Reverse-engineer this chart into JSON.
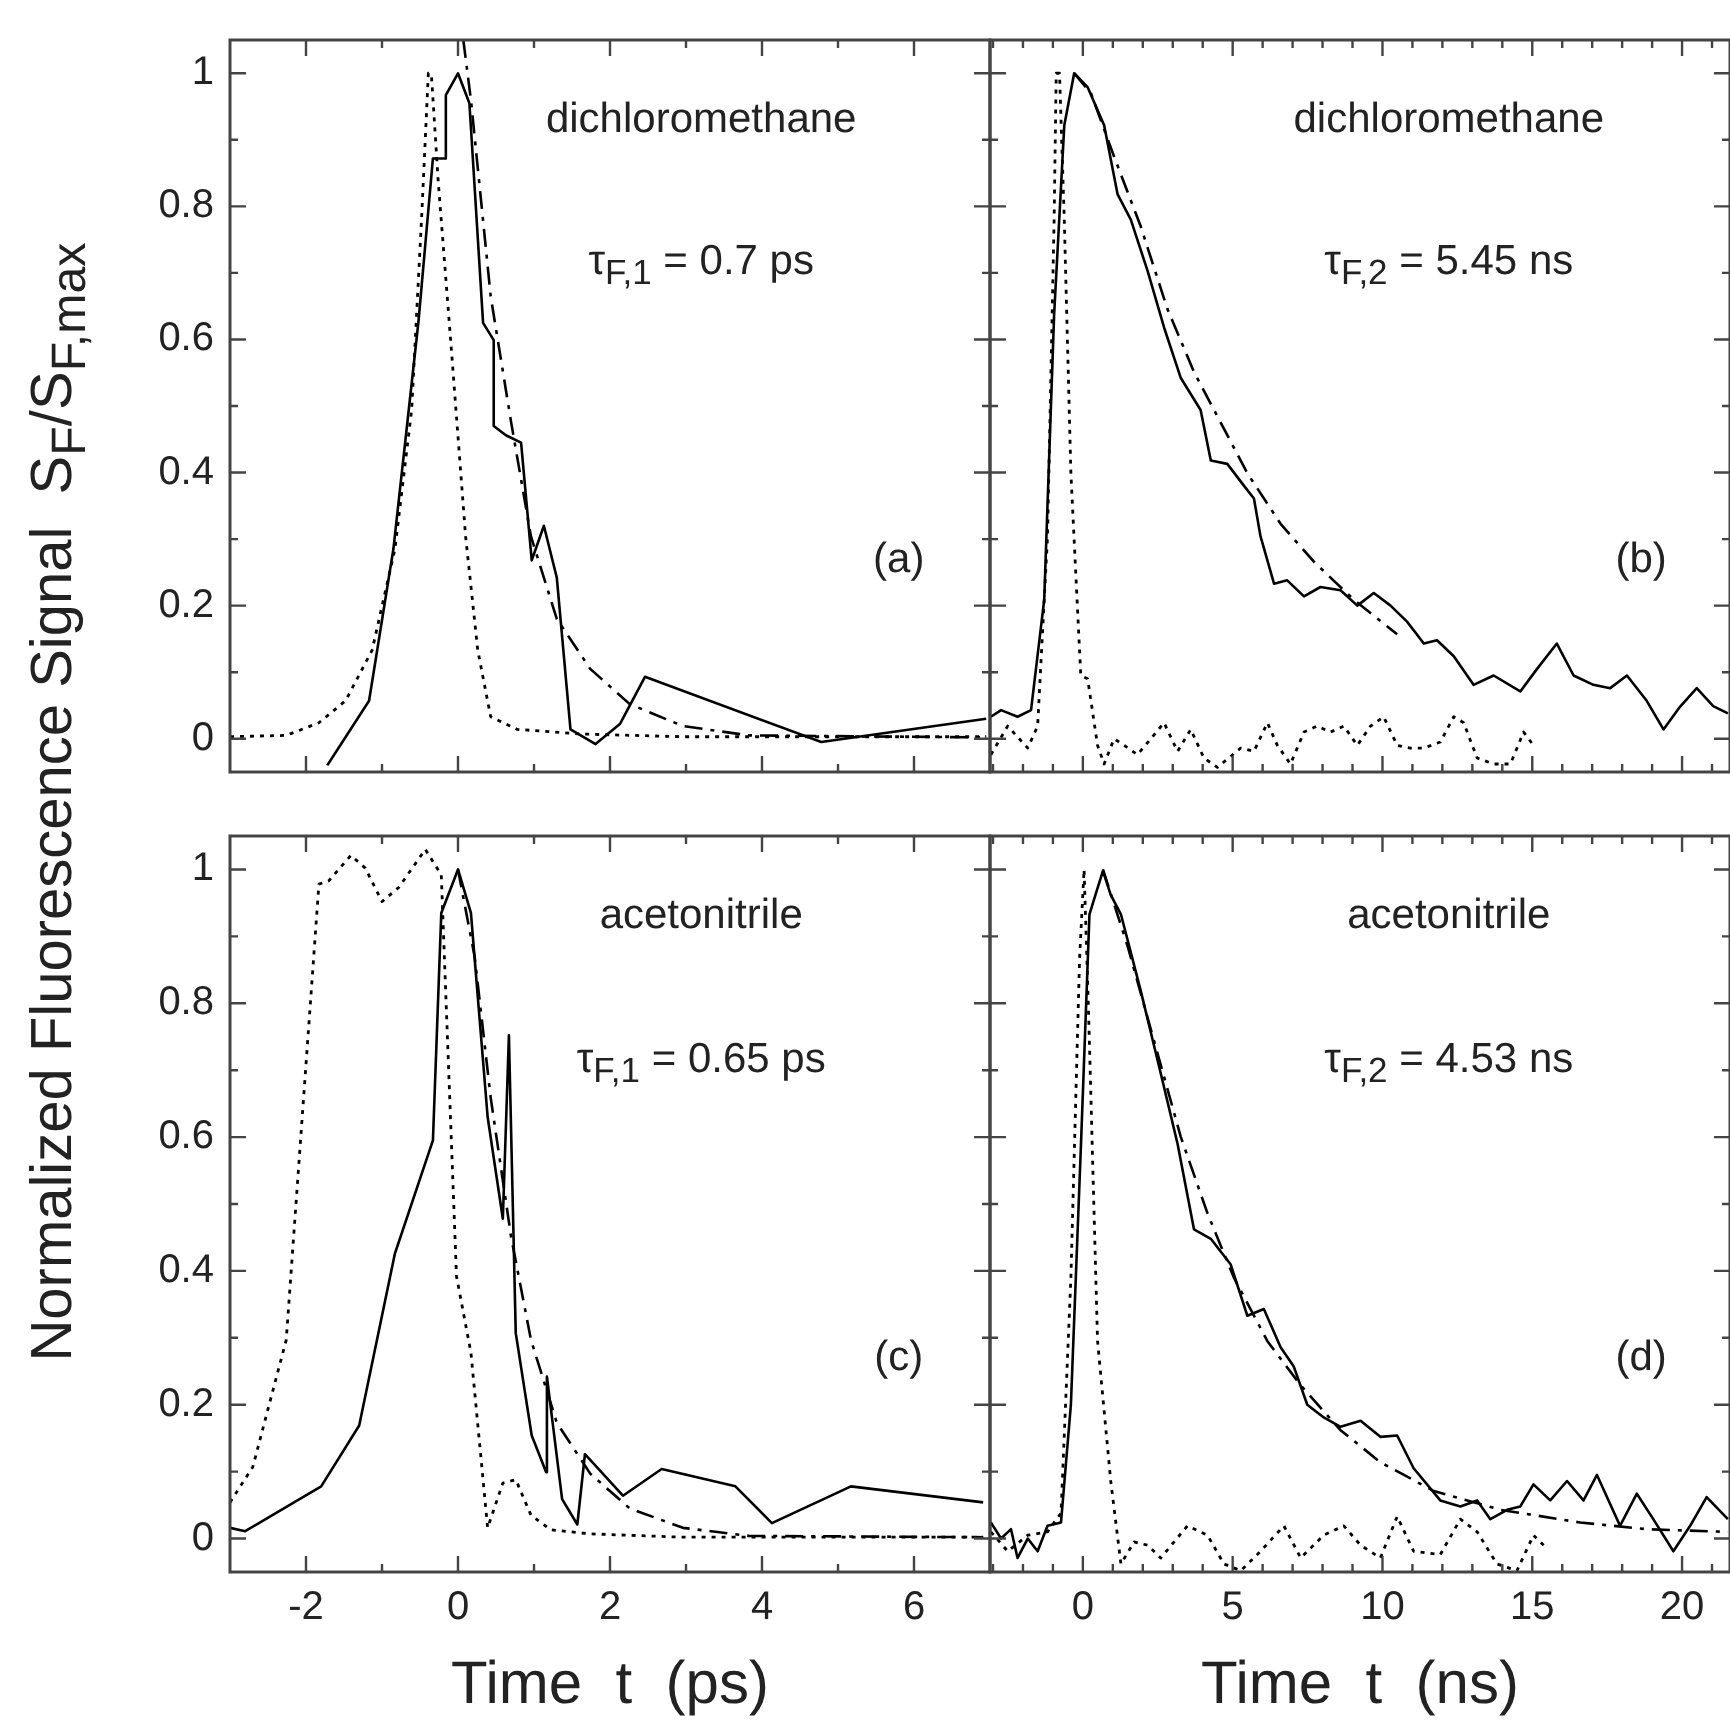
{
  "chart_data": [
    {
      "type": "line",
      "ylabel": "Normalized Fluorescence Signal  S$_{F}$/S$_{F,max}$",
      "annotations": [
        "dichloromethane",
        "τ$_{F,1}$ = 0.7 ps",
        "(a)"
      ],
      "xlim": [
        -3,
        7
      ],
      "xticks": [
        -2,
        {
          "value": -1,
          "label": null
        },
        0,
        {
          "value": 1,
          "label": null
        },
        2,
        {
          "value": 3,
          "label": null
        },
        4,
        {
          "value": 5,
          "label": null
        },
        6
      ],
      "ylim": [
        -0.05,
        1.05
      ],
      "yticks": [
        0,
        {
          "value": 0.1,
          "label": null
        },
        0.2,
        {
          "value": 0.3,
          "label": null
        },
        0.4,
        {
          "value": 0.5,
          "label": null
        },
        0.6,
        {
          "value": 0.7,
          "label": null
        },
        0.8,
        {
          "value": 0.9,
          "label": null
        },
        1
      ],
      "tick_labels": "y",
      "grid": false,
      "series": [
        {
          "color": "#000000",
          "line_style": "solid",
          "x": [
            -1.72,
            -1.17,
            -0.85,
            -0.52,
            -0.33,
            -0.16,
            -0.16,
            0,
            0.15,
            0.33,
            0.47,
            0.47,
            0.63,
            0.83,
            0.97,
            1.13,
            1.3,
            1.48,
            1.81,
            2.13,
            2.46,
            4.78,
            6.95
          ],
          "values": [
            -0.04,
            0.057,
            0.285,
            0.627,
            0.872,
            0.872,
            0.967,
            1.0,
            0.955,
            0.625,
            0.599,
            0.47,
            0.456,
            0.445,
            0.268,
            0.32,
            0.242,
            0.014,
            -0.008,
            0.022,
            0.093,
            -0.005,
            0.03
          ]
        },
        {
          "color": "#000000",
          "line_style": "dotted",
          "x": [
            -3,
            -2.26,
            -1.83,
            -1.48,
            -1.13,
            -0.83,
            -0.61,
            -0.48,
            -0.39,
            -0.35,
            -0.26,
            -0.09,
            0.1,
            0.26,
            0.43,
            0.78,
            1.65,
            2.96,
            6.95
          ],
          "values": [
            0.003,
            0.005,
            0.024,
            0.057,
            0.133,
            0.285,
            0.494,
            0.78,
            1.0,
            0.998,
            0.837,
            0.589,
            0.304,
            0.133,
            0.033,
            0.014,
            0.007,
            0.003,
            0.003
          ]
        },
        {
          "color": "#000000",
          "line_style": "dashed",
          "x": [
            0.07,
            0.17,
            0.43,
            0.7,
            0.96,
            1.3,
            1.74,
            2.26,
            2.96,
            3.83,
            6.95
          ],
          "values": [
            1.05,
            0.96,
            0.665,
            0.475,
            0.304,
            0.18,
            0.105,
            0.052,
            0.019,
            0.005,
            0.002
          ]
        }
      ]
    },
    {
      "type": "line",
      "annotations": [
        "dichloromethane",
        "τ$_{F,2}$ = 5.45 ns",
        "(b)"
      ],
      "xlim": [
        -3.1,
        21.6
      ],
      "xticks": [
        {
          "value": -3,
          "label": null
        },
        {
          "value": -2,
          "label": null
        },
        {
          "value": -1,
          "label": null
        },
        0,
        {
          "value": 1,
          "label": null
        },
        {
          "value": 2,
          "label": null
        },
        {
          "value": 3,
          "label": null
        },
        {
          "value": 4,
          "label": null
        },
        5,
        {
          "value": 6,
          "label": null
        },
        {
          "value": 7,
          "label": null
        },
        {
          "value": 8,
          "label": null
        },
        {
          "value": 9,
          "label": null
        },
        10,
        {
          "value": 11,
          "label": null
        },
        {
          "value": 12,
          "label": null
        },
        {
          "value": 13,
          "label": null
        },
        {
          "value": 14,
          "label": null
        },
        15,
        {
          "value": 16,
          "label": null
        },
        {
          "value": 17,
          "label": null
        },
        {
          "value": 18,
          "label": null
        },
        {
          "value": 19,
          "label": null
        },
        20,
        {
          "value": 21,
          "label": null
        }
      ],
      "ylim": [
        -0.05,
        1.05
      ],
      "yticks": [
        0,
        {
          "value": 0.1,
          "label": null
        },
        0.2,
        {
          "value": 0.3,
          "label": null
        },
        0.4,
        {
          "value": 0.5,
          "label": null
        },
        0.6,
        {
          "value": 0.7,
          "label": null
        },
        0.8,
        {
          "value": 0.9,
          "label": null
        },
        1
      ],
      "tick_labels": false,
      "grid": false,
      "series": [
        {
          "color": "#000000",
          "line_style": "solid",
          "x": [
            -3.07,
            -2.73,
            -2.18,
            -1.73,
            -1.29,
            -0.96,
            -0.62,
            -0.29,
            0.16,
            0.71,
            1.16,
            1.6,
            2.16,
            2.71,
            3.27,
            3.93,
            4.27,
            4.82,
            5.38,
            5.71,
            5.93,
            6.38,
            6.82,
            7.38,
            7.93,
            8.6,
            9.16,
            9.71,
            10.27,
            10.82,
            11.38,
            11.82,
            12.38,
            13.04,
            13.71,
            14.6,
            15.16,
            15.82,
            16.38,
            17.04,
            17.6,
            18.16,
            18.82,
            19.38,
            19.93,
            20.49,
            21.04,
            21.53
          ],
          "values": [
            0.033,
            0.043,
            0.033,
            0.043,
            0.209,
            0.637,
            0.922,
            1.0,
            0.979,
            0.922,
            0.818,
            0.78,
            0.703,
            0.618,
            0.542,
            0.494,
            0.418,
            0.413,
            0.38,
            0.361,
            0.304,
            0.233,
            0.238,
            0.214,
            0.228,
            0.223,
            0.2,
            0.219,
            0.2,
            0.176,
            0.143,
            0.148,
            0.124,
            0.081,
            0.095,
            0.071,
            0.105,
            0.143,
            0.095,
            0.081,
            0.076,
            0.095,
            0.057,
            0.014,
            0.048,
            0.076,
            0.049,
            0.038
          ]
        },
        {
          "color": "#000000",
          "line_style": "dotted",
          "x": [
            -3.07,
            -2.51,
            -1.84,
            -1.51,
            -1.18,
            -0.96,
            -0.89,
            -0.78,
            -0.62,
            -0.4,
            -0.07,
            0.16,
            0.49,
            0.71,
            1.04,
            1.38,
            1.82,
            2.27,
            2.71,
            3.16,
            3.6,
            4.04,
            4.49,
            5.27,
            5.71,
            6.16,
            6.49,
            6.93,
            7.38,
            7.82,
            8.27,
            8.71,
            9.16,
            9.6,
            10.04,
            10.49,
            10.93,
            11.38,
            11.93,
            12.38,
            12.71,
            13.16,
            13.71,
            14.27,
            14.71,
            15.04
          ],
          "values": [
            -0.024,
            0.019,
            -0.014,
            0.019,
            0.304,
            0.779,
            1.0,
            1.0,
            0.779,
            0.399,
            0.095,
            0.09,
            -0.01,
            -0.038,
            0,
            -0.01,
            -0.024,
            0,
            0.024,
            -0.019,
            0.014,
            -0.029,
            -0.043,
            -0.014,
            -0.019,
            0.024,
            -0.01,
            -0.038,
            0.01,
            0.019,
            0.01,
            0.019,
            -0.01,
            0.019,
            0.033,
            -0.01,
            -0.014,
            -0.014,
            -0.005,
            0.033,
            0.024,
            -0.029,
            -0.038,
            -0.038,
            0.01,
            -0.01
          ]
        },
        {
          "color": "#000000",
          "line_style": "dashed",
          "x": [
            -0.29,
            0.27,
            1.04,
            1.93,
            2.82,
            3.71,
            4.6,
            5.49,
            6.6,
            7.71,
            9.04,
            10.49
          ],
          "values": [
            1.0,
            0.97,
            0.875,
            0.77,
            0.646,
            0.551,
            0.475,
            0.399,
            0.323,
            0.266,
            0.209,
            0.157
          ]
        }
      ]
    },
    {
      "type": "line",
      "xlabel": "Time  t  (ps)",
      "annotations": [
        "acetonitrile",
        "τ$_{F,1}$ = 0.65 ps",
        "(c)"
      ],
      "xlim": [
        -3,
        7
      ],
      "xticks": [
        -2,
        {
          "value": -1,
          "label": null
        },
        0,
        {
          "value": 1,
          "label": null
        },
        2,
        {
          "value": 3,
          "label": null
        },
        4,
        {
          "value": 5,
          "label": null
        },
        6
      ],
      "ylim": [
        -0.05,
        1.05
      ],
      "yticks": [
        0,
        {
          "value": 0.1,
          "label": null
        },
        0.2,
        {
          "value": 0.3,
          "label": null
        },
        0.4,
        {
          "value": 0.5,
          "label": null
        },
        0.6,
        {
          "value": 0.7,
          "label": null
        },
        0.8,
        {
          "value": 0.9,
          "label": null
        },
        1
      ],
      "grid": false,
      "series": [
        {
          "color": "#000000",
          "line_style": "solid",
          "x": [
            -3,
            -2.8,
            -1.8,
            -1.3,
            -0.83,
            -0.33,
            -0.22,
            0,
            0.17,
            0.39,
            0.59,
            0.67,
            0.76,
            0.97,
            1.16,
            1.17,
            1.37,
            1.57,
            1.67,
            2.17,
            2.68,
            3.65,
            4.13,
            5.17,
            6.91
          ],
          "values": [
            0.016,
            0.011,
            0.078,
            0.169,
            0.426,
            0.595,
            0.935,
            1.0,
            0.935,
            0.63,
            0.478,
            0.752,
            0.307,
            0.154,
            0.099,
            0.242,
            0.059,
            0.021,
            0.126,
            0.064,
            0.104,
            0.078,
            0.023,
            0.078,
            0.054
          ]
        },
        {
          "color": "#000000",
          "line_style": "dotted",
          "x": [
            -3,
            -2.7,
            -2.26,
            -1.83,
            -1.7,
            -1.41,
            -1.22,
            -1.0,
            -0.78,
            -0.43,
            -0.22,
            -0.02,
            0.17,
            0.39,
            0.59,
            0.76,
            0.96,
            1.22,
            1.74,
            2.96,
            6.91
          ],
          "values": [
            0.054,
            0.107,
            0.297,
            0.978,
            0.983,
            1.021,
            1.002,
            0.952,
            0.973,
            1.03,
            0.992,
            0.392,
            0.278,
            0.016,
            0.083,
            0.088,
            0.035,
            0.013,
            0.007,
            0.002,
            0.002
          ]
        },
        {
          "color": "#000000",
          "line_style": "dashed",
          "x": [
            0,
            0.22,
            0.43,
            0.7,
            0.96,
            1.3,
            1.74,
            2.26,
            2.96,
            3.83,
            6.91
          ],
          "values": [
            1.0,
            0.869,
            0.659,
            0.45,
            0.297,
            0.173,
            0.097,
            0.045,
            0.016,
            0.004,
            0.002
          ]
        }
      ]
    },
    {
      "type": "line",
      "xlabel": "Time  t  (ns)",
      "annotations": [
        "acetonitrile",
        "τ$_{F,2}$ = 4.53 ns",
        "(d)"
      ],
      "xlim": [
        -3.1,
        21.6
      ],
      "xticks": [
        {
          "value": -3,
          "label": null
        },
        {
          "value": -2,
          "label": null
        },
        {
          "value": -1,
          "label": null
        },
        0,
        {
          "value": 1,
          "label": null
        },
        {
          "value": 2,
          "label": null
        },
        {
          "value": 3,
          "label": null
        },
        {
          "value": 4,
          "label": null
        },
        5,
        {
          "value": 6,
          "label": null
        },
        {
          "value": 7,
          "label": null
        },
        {
          "value": 8,
          "label": null
        },
        {
          "value": 9,
          "label": null
        },
        10,
        {
          "value": 11,
          "label": null
        },
        {
          "value": 12,
          "label": null
        },
        {
          "value": 13,
          "label": null
        },
        {
          "value": 14,
          "label": null
        },
        15,
        {
          "value": 16,
          "label": null
        },
        {
          "value": 17,
          "label": null
        },
        {
          "value": 18,
          "label": null
        },
        {
          "value": 19,
          "label": null
        },
        20,
        {
          "value": 21,
          "label": null
        }
      ],
      "ylim": [
        -0.05,
        1.05
      ],
      "yticks": [
        0,
        {
          "value": 0.1,
          "label": null
        },
        0.2,
        {
          "value": 0.3,
          "label": null
        },
        0.4,
        {
          "value": 0.5,
          "label": null
        },
        0.6,
        {
          "value": 0.7,
          "label": null
        },
        0.8,
        {
          "value": 0.9,
          "label": null
        },
        1
      ],
      "tick_labels": "x",
      "grid": false,
      "series": [
        {
          "color": "#000000",
          "line_style": "solid",
          "x": [
            -3.07,
            -2.73,
            -2.4,
            -2.18,
            -1.84,
            -1.51,
            -1.18,
            -0.73,
            -0.4,
            -0.07,
            0.22,
            0.42,
            0.67,
            0.93,
            1.27,
            1.93,
            2.6,
            3.16,
            3.71,
            4.27,
            4.93,
            5.49,
            6.04,
            6.6,
            7.04,
            7.49,
            8.04,
            8.6,
            9.27,
            9.93,
            10.49,
            11.04,
            11.93,
            12.6,
            13.16,
            13.6,
            14.16,
            14.6,
            15.04,
            15.6,
            16.16,
            16.71,
            17.16,
            17.93,
            18.49,
            19.04,
            19.71,
            20.27,
            20.82,
            21.53
          ],
          "values": [
            0.024,
            0,
            0.014,
            -0.029,
            0,
            -0.019,
            0.019,
            0.024,
            0.2,
            0.581,
            0.933,
            0.962,
            0.998,
            0.962,
            0.933,
            0.819,
            0.695,
            0.59,
            0.462,
            0.448,
            0.41,
            0.333,
            0.343,
            0.286,
            0.257,
            0.2,
            0.181,
            0.167,
            0.176,
            0.152,
            0.154,
            0.105,
            0.057,
            0.048,
            0.057,
            0.029,
            0.043,
            0.048,
            0.081,
            0.057,
            0.086,
            0.057,
            0.095,
            0.019,
            0.067,
            0.029,
            -0.019,
            0.019,
            0.062,
            0.029
          ]
        },
        {
          "color": "#000000",
          "line_style": "dotted",
          "x": [
            -3.07,
            -2.51,
            -1.84,
            -1.18,
            -0.73,
            -0.4,
            -0.11,
            0.04,
            0.2,
            0.49,
            0.93,
            1.27,
            1.71,
            2.16,
            2.6,
            3.49,
            4.16,
            4.71,
            5.27,
            5.93,
            6.71,
            7.27,
            8.04,
            8.71,
            9.27,
            9.93,
            10.49,
            11.04,
            11.93,
            12.6,
            13.16,
            13.82,
            14.49,
            15.04,
            15.38
          ],
          "values": [
            0.01,
            -0.019,
            0.005,
            0.01,
            0.038,
            0.39,
            0.867,
            1.0,
            0.771,
            0.295,
            0.086,
            -0.038,
            -0.005,
            -0.01,
            -0.029,
            0.019,
            0.005,
            -0.038,
            -0.048,
            -0.019,
            0.019,
            -0.029,
            0.005,
            0.019,
            -0.01,
            -0.029,
            0.033,
            -0.019,
            -0.024,
            0.029,
            0.01,
            -0.038,
            -0.048,
            0.005,
            -0.01
          ]
        },
        {
          "color": "#000000",
          "line_style": "dashed",
          "x": [
            0.67,
            1.49,
            2.38,
            3.27,
            4.16,
            5.04,
            6.16,
            7.27,
            8.6,
            9.93,
            11.71,
            13.93,
            16.6,
            18.82,
            21.53
          ],
          "values": [
            1.0,
            0.886,
            0.743,
            0.6,
            0.486,
            0.39,
            0.295,
            0.229,
            0.162,
            0.114,
            0.071,
            0.043,
            0.024,
            0.014,
            0.01
          ]
        }
      ]
    }
  ]
}
